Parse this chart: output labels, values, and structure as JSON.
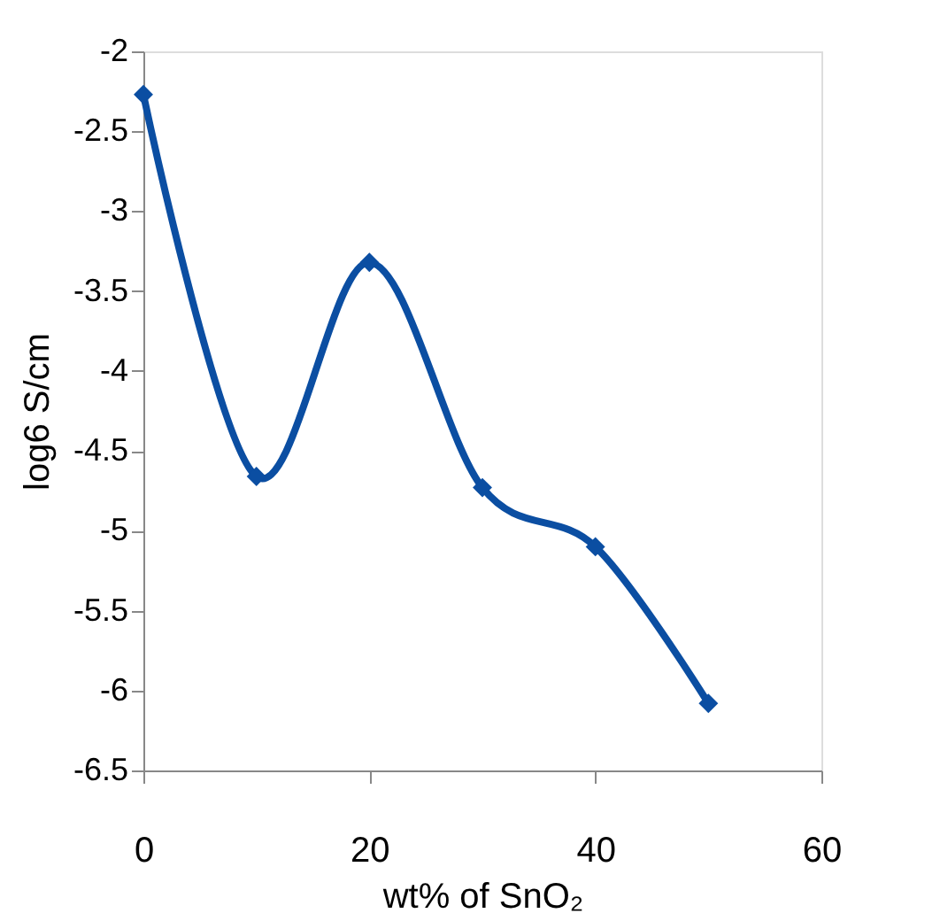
{
  "chart_data": {
    "type": "line",
    "xlabel": "wt% of SnO₂",
    "ylabel": "log6 S/cm",
    "x": [
      0,
      10,
      20,
      30,
      40,
      50
    ],
    "series": [
      {
        "color": "#0b4ea2",
        "values": [
          -2.27,
          -4.66,
          -3.32,
          -4.73,
          -5.1,
          -6.08
        ]
      }
    ],
    "xlim": [
      0,
      60
    ],
    "xticks": [
      0,
      20,
      40,
      60
    ],
    "ylim": [
      -6.5,
      -2
    ],
    "yticks": [
      -6.5,
      -6,
      -5.5,
      -5,
      -4.5,
      -4,
      -3.5,
      -3,
      -2.5,
      -2
    ],
    "grid": false,
    "legend": false,
    "marker": "diamond",
    "line_style": "solid"
  }
}
